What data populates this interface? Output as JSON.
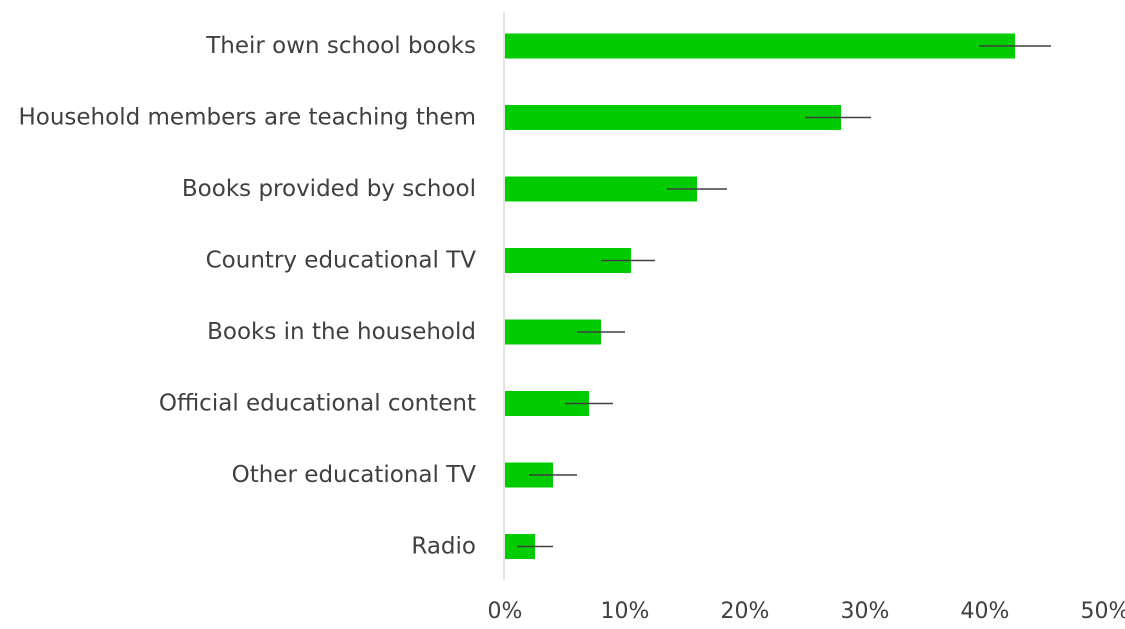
{
  "chart_data": {
    "type": "bar",
    "orientation": "horizontal",
    "categories": [
      "Their own school books",
      "Household members are teaching them",
      "Books provided by school",
      "Country educational TV",
      "Books in the household",
      "Official educational content",
      "Other educational TV",
      "Radio"
    ],
    "values": [
      42.5,
      28.0,
      16.0,
      10.5,
      8.0,
      7.0,
      4.0,
      2.5
    ],
    "error_low": [
      39.5,
      25.0,
      13.5,
      8.0,
      6.0,
      5.0,
      2.0,
      1.0
    ],
    "error_high": [
      45.5,
      30.5,
      18.5,
      12.5,
      10.0,
      9.0,
      6.0,
      4.0
    ],
    "xlim": [
      0,
      50
    ],
    "xticks": [
      0,
      10,
      20,
      30,
      40,
      50
    ],
    "xtick_labels": [
      "0%",
      "10%",
      "20%",
      "30%",
      "40%",
      "50%"
    ],
    "bar_color": "#00cc00",
    "error_bar_color": "#404040",
    "axis_color": "#d9d9d9",
    "grid": false,
    "legend": "none"
  }
}
